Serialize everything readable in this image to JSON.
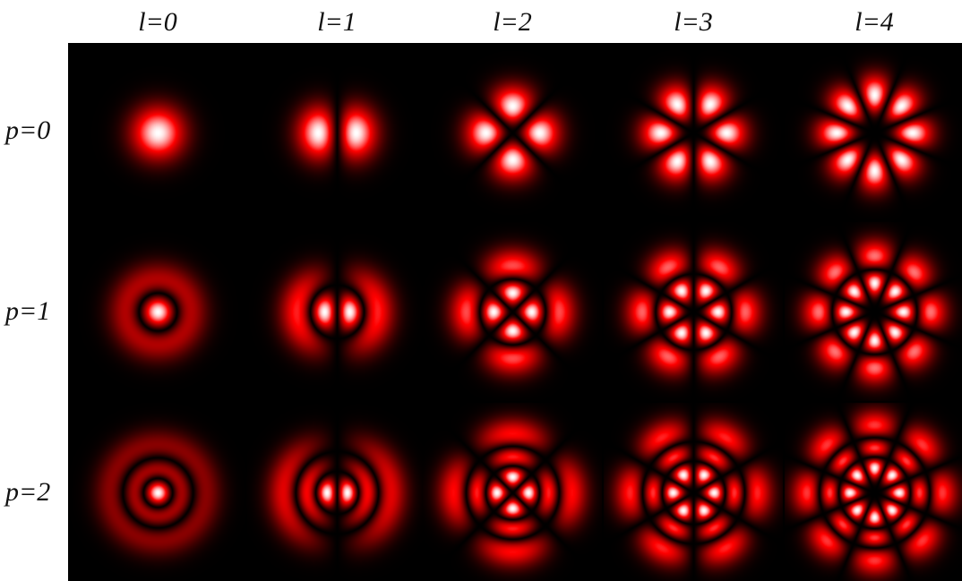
{
  "columns": [
    {
      "label": "l=0",
      "l": 0
    },
    {
      "label": "l=1",
      "l": 1
    },
    {
      "label": "l=2",
      "l": 2
    },
    {
      "label": "l=3",
      "l": 3
    },
    {
      "label": "l=4",
      "l": 4
    }
  ],
  "rows": [
    {
      "label": "p=0",
      "p": 0
    },
    {
      "label": "p=1",
      "p": 1
    },
    {
      "label": "p=2",
      "p": 2
    }
  ],
  "colors": {
    "background": "#000000",
    "mid": "#ff0000",
    "peak": "#ffffff"
  }
}
